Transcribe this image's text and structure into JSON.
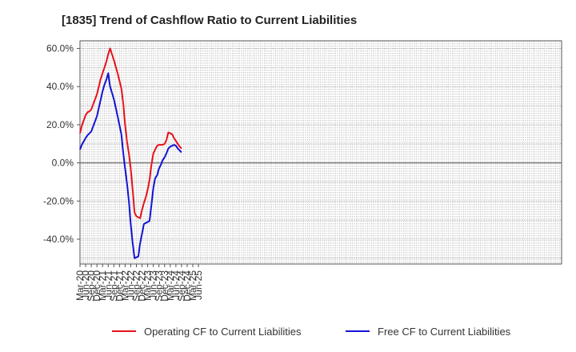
{
  "chart_data": {
    "type": "line",
    "title": "[1835]  Trend of Cashflow Ratio to Current Liabilities",
    "xlabel": "",
    "ylabel": "",
    "ylim": [
      -53,
      64
    ],
    "y_ticks": [
      60,
      40,
      20,
      0,
      -20,
      -40
    ],
    "y_tick_labels": [
      "60.0%",
      "40.0%",
      "20.0%",
      "0.0%",
      "-20.0%",
      "-40.0%"
    ],
    "x_tick_labels": [
      "Mar-20",
      "Jun-20",
      "Sep-20",
      "Dec-20",
      "Mar-21",
      "Jun-21",
      "Sep-21",
      "Dec-21",
      "Mar-22",
      "Jun-22",
      "Sep-22",
      "Dec-22",
      "Mar-23",
      "Jun-23",
      "Sep-23",
      "Dec-23",
      "Mar-24",
      "Jun-24",
      "Sep-24",
      "Dec-24",
      "Mar-25",
      "Jun-25"
    ],
    "grid": true,
    "legend_position": "bottom",
    "x_months": [
      "2020-03",
      "2020-04",
      "2020-05",
      "2020-06",
      "2020-07",
      "2020-08",
      "2020-09",
      "2020-10",
      "2020-11",
      "2020-12",
      "2021-01",
      "2021-02",
      "2021-03",
      "2021-04",
      "2021-05",
      "2021-06",
      "2021-07",
      "2021-08",
      "2021-09",
      "2021-10",
      "2021-11",
      "2021-12",
      "2022-01",
      "2022-02",
      "2022-03",
      "2022-04",
      "2022-05",
      "2022-06",
      "2022-07",
      "2022-08",
      "2022-09",
      "2022-10",
      "2022-11",
      "2022-12",
      "2023-01",
      "2023-02",
      "2023-03",
      "2023-04",
      "2023-05",
      "2023-06",
      "2023-07",
      "2023-08",
      "2023-09",
      "2023-10",
      "2023-11",
      "2023-12",
      "2024-01",
      "2024-02",
      "2024-03",
      "2024-04",
      "2024-05",
      "2024-06",
      "2024-07",
      "2024-08",
      "2024-09",
      "2024-10",
      "2024-11",
      "2024-12",
      "2025-01",
      "2025-02",
      "2025-03"
    ],
    "series": [
      {
        "name": "Operating CF to Current Liabilities",
        "color": "#e8121d",
        "values": [
          15.5,
          19.5,
          25.0,
          26.5,
          27.0,
          28.0,
          36.0,
          44.0,
          47.0,
          50.0,
          53.0,
          57.0,
          60.0,
          54.0,
          47.0,
          39.0,
          31.0,
          20.0,
          11.0,
          5.0,
          -3.0,
          -14.0,
          -26.0,
          -28.0,
          -28.5,
          -29.0,
          -24.5,
          -21.0,
          -18.0,
          -14.0,
          -9.0,
          -1.0,
          5.0,
          7.0,
          9.0,
          9.5,
          9.5,
          9.5,
          10.0,
          12.0,
          16.0,
          15.5,
          15.0,
          13.0,
          11.5,
          10.0,
          8.5,
          7.5
        ]
      },
      {
        "name": "Free CF to Current Liabilities",
        "color": "#1313d6",
        "values": [
          7.0,
          9.5,
          13.0,
          14.5,
          15.5,
          16.5,
          24.5,
          33.0,
          37.5,
          41.0,
          43.5,
          47.0,
          40.0,
          33.5,
          24.5,
          15.0,
          5.0,
          -3.0,
          -11.0,
          -20.0,
          -32.0,
          -42.0,
          -50.0,
          -49.5,
          -49.0,
          -42.0,
          -37.0,
          -32.0,
          -31.5,
          -31.0,
          -30.5,
          -22.0,
          -13.0,
          -8.0,
          -6.5,
          -3.0,
          -1.0,
          1.5,
          3.0,
          5.0,
          7.5,
          8.5,
          9.0,
          9.5,
          9.0,
          7.5,
          6.5,
          5.5
        ]
      }
    ],
    "x_month_index": [
      0,
      1,
      3,
      4,
      5,
      6,
      9,
      11,
      12,
      13,
      14,
      15,
      16,
      18,
      20,
      22,
      23,
      24,
      25,
      26,
      27,
      28,
      29,
      30,
      31,
      32,
      33,
      34,
      35,
      36,
      37,
      38,
      39,
      40,
      41,
      42,
      43,
      44,
      45,
      46,
      47,
      48,
      49,
      50,
      51,
      52,
      53,
      54
    ]
  }
}
